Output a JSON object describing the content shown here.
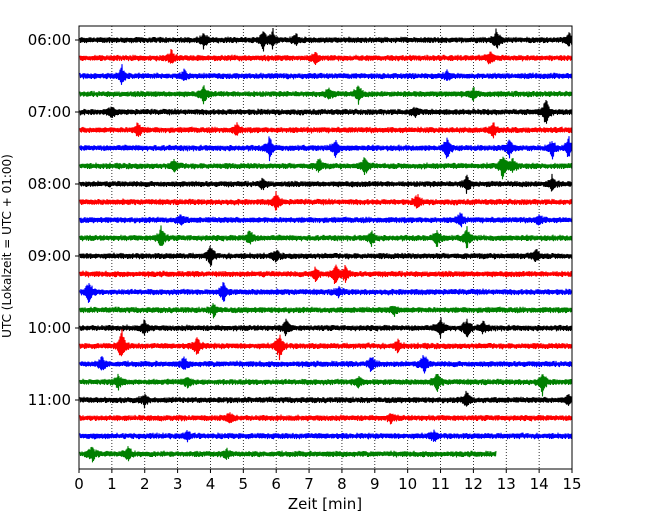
{
  "chart_data": {
    "type": "line",
    "title": "",
    "xlabel": "Zeit  [min]",
    "ylabel": "UTC (Lokalzeit = UTC + 01:00)",
    "xlim": [
      0,
      15
    ],
    "x_ticks": [
      0,
      1,
      2,
      3,
      4,
      5,
      6,
      7,
      8,
      9,
      10,
      11,
      12,
      13,
      14,
      15
    ],
    "y_tick_labels": [
      "06:00",
      "07:00",
      "08:00",
      "09:00",
      "10:00",
      "11:00"
    ],
    "grid": "vertical dotted",
    "trace_colors": [
      "#000000",
      "#ff0000",
      "#0000ff",
      "#008000"
    ],
    "traces": [
      {
        "start": "06:00",
        "end_min": 15,
        "events": [
          [
            3.8,
            1.0
          ],
          [
            5.6,
            1.2
          ],
          [
            5.9,
            1.1
          ],
          [
            6.6,
            0.6
          ],
          [
            12.7,
            1.2
          ],
          [
            14.9,
            0.7
          ]
        ]
      },
      {
        "start": "06:15",
        "end_min": 15,
        "events": [
          [
            2.8,
            0.8
          ],
          [
            7.2,
            0.6
          ],
          [
            12.5,
            0.7
          ]
        ]
      },
      {
        "start": "06:30",
        "end_min": 15,
        "events": [
          [
            1.3,
            1.1
          ],
          [
            3.2,
            0.6
          ],
          [
            11.2,
            0.5
          ]
        ]
      },
      {
        "start": "06:45",
        "end_min": 15,
        "events": [
          [
            3.8,
            1.0
          ],
          [
            7.6,
            0.7
          ],
          [
            8.5,
            1.0
          ],
          [
            12.0,
            0.6
          ]
        ]
      },
      {
        "start": "07:00",
        "end_min": 15,
        "events": [
          [
            1.0,
            0.6
          ],
          [
            10.2,
            0.6
          ],
          [
            14.2,
            1.6
          ]
        ]
      },
      {
        "start": "07:15",
        "end_min": 15,
        "events": [
          [
            1.8,
            0.9
          ],
          [
            4.8,
            0.6
          ],
          [
            12.6,
            0.9
          ]
        ]
      },
      {
        "start": "07:30",
        "end_min": 15,
        "events": [
          [
            5.8,
            1.3
          ],
          [
            7.8,
            1.0
          ],
          [
            11.2,
            1.2
          ],
          [
            13.1,
            0.9
          ],
          [
            14.4,
            1.0
          ],
          [
            14.9,
            1.1
          ]
        ]
      },
      {
        "start": "07:45",
        "end_min": 15,
        "events": [
          [
            2.9,
            0.7
          ],
          [
            7.3,
            0.8
          ],
          [
            8.7,
            1.0
          ],
          [
            12.9,
            1.4
          ],
          [
            13.2,
            0.8
          ]
        ]
      },
      {
        "start": "08:00",
        "end_min": 15,
        "events": [
          [
            5.6,
            0.6
          ],
          [
            11.8,
            1.0
          ],
          [
            14.4,
            0.9
          ]
        ]
      },
      {
        "start": "08:15",
        "end_min": 15,
        "events": [
          [
            6.0,
            1.0
          ],
          [
            10.3,
            0.8
          ]
        ]
      },
      {
        "start": "08:30",
        "end_min": 15,
        "events": [
          [
            3.1,
            0.6
          ],
          [
            11.6,
            0.8
          ],
          [
            14.0,
            0.6
          ]
        ]
      },
      {
        "start": "08:45",
        "end_min": 15,
        "events": [
          [
            2.5,
            1.3
          ],
          [
            5.2,
            0.9
          ],
          [
            8.9,
            0.8
          ],
          [
            10.9,
            1.0
          ],
          [
            11.8,
            1.1
          ]
        ]
      },
      {
        "start": "09:00",
        "end_min": 15,
        "events": [
          [
            4.0,
            1.2
          ],
          [
            6.0,
            0.6
          ],
          [
            13.9,
            0.8
          ]
        ]
      },
      {
        "start": "09:15",
        "end_min": 15,
        "events": [
          [
            7.2,
            0.8
          ],
          [
            7.8,
            1.1
          ],
          [
            8.1,
            0.9
          ]
        ]
      },
      {
        "start": "09:30",
        "end_min": 15,
        "events": [
          [
            0.3,
            1.3
          ],
          [
            4.4,
            1.1
          ],
          [
            7.9,
            0.5
          ]
        ]
      },
      {
        "start": "09:45",
        "end_min": 15,
        "events": [
          [
            4.1,
            0.7
          ],
          [
            9.6,
            0.5
          ]
        ]
      },
      {
        "start": "10:00",
        "end_min": 15,
        "events": [
          [
            2.0,
            0.8
          ],
          [
            6.3,
            0.9
          ],
          [
            11.0,
            1.1
          ],
          [
            11.8,
            1.3
          ],
          [
            12.3,
            0.6
          ]
        ]
      },
      {
        "start": "10:15",
        "end_min": 15,
        "events": [
          [
            1.3,
            1.8
          ],
          [
            3.6,
            1.2
          ],
          [
            6.1,
            1.6
          ],
          [
            9.7,
            0.6
          ]
        ]
      },
      {
        "start": "10:30",
        "end_min": 15,
        "events": [
          [
            0.7,
            0.8
          ],
          [
            3.2,
            0.7
          ],
          [
            8.9,
            0.9
          ],
          [
            10.5,
            1.1
          ]
        ]
      },
      {
        "start": "10:45",
        "end_min": 15,
        "events": [
          [
            1.2,
            0.8
          ],
          [
            3.3,
            0.6
          ],
          [
            8.5,
            0.7
          ],
          [
            10.9,
            1.0
          ],
          [
            14.1,
            1.3
          ]
        ]
      },
      {
        "start": "11:00",
        "end_min": 15,
        "events": [
          [
            2.0,
            0.6
          ],
          [
            11.8,
            1.0
          ],
          [
            14.9,
            0.6
          ]
        ]
      },
      {
        "start": "11:15",
        "end_min": 15,
        "events": [
          [
            4.6,
            0.6
          ],
          [
            9.5,
            0.5
          ]
        ]
      },
      {
        "start": "11:30",
        "end_min": 15,
        "events": [
          [
            3.3,
            0.5
          ],
          [
            10.8,
            0.6
          ]
        ]
      },
      {
        "start": "11:45",
        "end_min": 12.7,
        "events": [
          [
            0.4,
            0.8
          ],
          [
            1.5,
            0.9
          ],
          [
            4.5,
            0.5
          ]
        ]
      }
    ]
  }
}
